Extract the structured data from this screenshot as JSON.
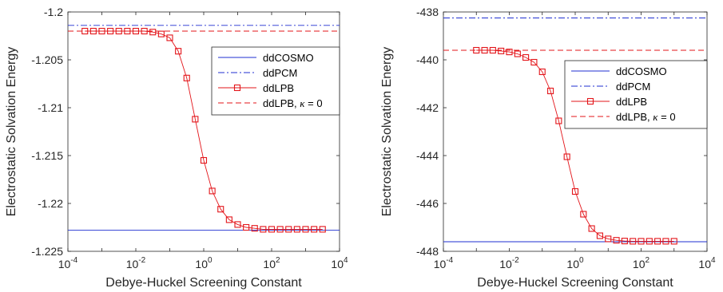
{
  "colors": {
    "ddcosmo": "#1f2fd0",
    "ddpcm": "#1f2fd0",
    "ddlpb": "#e3151a",
    "ddlpb_k0": "#e3151a",
    "axis": "#262626"
  },
  "chart_data": [
    {
      "type": "line",
      "xscale": "log",
      "xlim": [
        0.0001,
        10000
      ],
      "ylim": [
        -1.225,
        -1.2
      ],
      "xlabel": "Debye-Huckel Screening Constant",
      "ylabel": "Electrostatic Solvation Energy",
      "xticks": [
        {
          "value": 0.0001,
          "base": "10",
          "exp": "-4"
        },
        {
          "value": 0.01,
          "base": "10",
          "exp": "-2"
        },
        {
          "value": 1,
          "base": "10",
          "exp": "0"
        },
        {
          "value": 100,
          "base": "10",
          "exp": "2"
        },
        {
          "value": 10000,
          "base": "10",
          "exp": "4"
        }
      ],
      "yticks": [
        {
          "value": -1.2,
          "label": "-1.2"
        },
        {
          "value": -1.205,
          "label": "-1.205"
        },
        {
          "value": -1.21,
          "label": "-1.21"
        },
        {
          "value": -1.215,
          "label": "-1.215"
        },
        {
          "value": -1.22,
          "label": "-1.22"
        },
        {
          "value": -1.225,
          "label": "-1.225"
        }
      ],
      "legend_position": "right",
      "series": [
        {
          "name": "ddCOSMO",
          "style": "solid",
          "hline": -1.2228
        },
        {
          "name": "ddPCM",
          "style": "dashdot",
          "hline": -1.2014
        },
        {
          "name": "ddLPB",
          "style": "solid-square",
          "x": [
            0.000316,
            0.000562,
            0.001,
            0.00178,
            0.00316,
            0.00562,
            0.01,
            0.0178,
            0.0316,
            0.0562,
            0.1,
            0.178,
            0.316,
            0.562,
            1,
            1.78,
            3.16,
            5.62,
            10,
            17.8,
            31.6,
            56.2,
            100,
            178,
            316,
            562,
            1000,
            1780,
            3160
          ],
          "y": [
            -1.202,
            -1.202,
            -1.202,
            -1.202,
            -1.202,
            -1.202,
            -1.202,
            -1.202,
            -1.2021,
            -1.2023,
            -1.2027,
            -1.2041,
            -1.2069,
            -1.2112,
            -1.2155,
            -1.2187,
            -1.2206,
            -1.2217,
            -1.2222,
            -1.2225,
            -1.2226,
            -1.2227,
            -1.2227,
            -1.2227,
            -1.2227,
            -1.2227,
            -1.2227,
            -1.2227,
            -1.2227
          ]
        },
        {
          "name": "ddLPB, κ = 0",
          "label_prefix": "ddLPB, ",
          "label_kappa": "κ",
          "label_suffix": " = 0",
          "style": "dashed",
          "hline": -1.202
        }
      ]
    },
    {
      "type": "line",
      "xscale": "log",
      "xlim": [
        0.0001,
        10000
      ],
      "ylim": [
        -448,
        -438
      ],
      "xlabel": "Debye-Huckel Screening Constant",
      "ylabel": "Electrostatic Solvation Energy",
      "xticks": [
        {
          "value": 0.0001,
          "base": "10",
          "exp": "-4"
        },
        {
          "value": 0.01,
          "base": "10",
          "exp": "-2"
        },
        {
          "value": 1,
          "base": "10",
          "exp": "0"
        },
        {
          "value": 100,
          "base": "10",
          "exp": "2"
        },
        {
          "value": 10000,
          "base": "10",
          "exp": "4"
        }
      ],
      "yticks": [
        {
          "value": -438,
          "label": "-438"
        },
        {
          "value": -440,
          "label": "-440"
        },
        {
          "value": -442,
          "label": "-442"
        },
        {
          "value": -444,
          "label": "-444"
        },
        {
          "value": -446,
          "label": "-446"
        },
        {
          "value": -448,
          "label": "-448"
        }
      ],
      "legend_position": "right",
      "series": [
        {
          "name": "ddCOSMO",
          "style": "solid",
          "hline": -447.6
        },
        {
          "name": "ddPCM",
          "style": "dashdot",
          "hline": -438.25
        },
        {
          "name": "ddLPB",
          "style": "solid-square",
          "x": [
            0.001,
            0.00178,
            0.00316,
            0.00562,
            0.01,
            0.0178,
            0.0316,
            0.0562,
            0.1,
            0.178,
            0.316,
            0.562,
            1,
            1.78,
            3.16,
            5.62,
            10,
            17.8,
            31.6,
            56.2,
            100,
            178,
            316,
            562,
            1000
          ],
          "y": [
            -439.6,
            -439.6,
            -439.6,
            -439.63,
            -439.67,
            -439.75,
            -439.9,
            -440.1,
            -440.5,
            -441.3,
            -442.55,
            -444.05,
            -445.5,
            -446.45,
            -447.05,
            -447.35,
            -447.48,
            -447.54,
            -447.57,
            -447.58,
            -447.58,
            -447.58,
            -447.58,
            -447.58,
            -447.58
          ]
        },
        {
          "name": "ddLPB, κ = 0",
          "label_prefix": "ddLPB, ",
          "label_kappa": "κ",
          "label_suffix": " = 0",
          "style": "dashed",
          "hline": -439.6
        }
      ]
    }
  ]
}
